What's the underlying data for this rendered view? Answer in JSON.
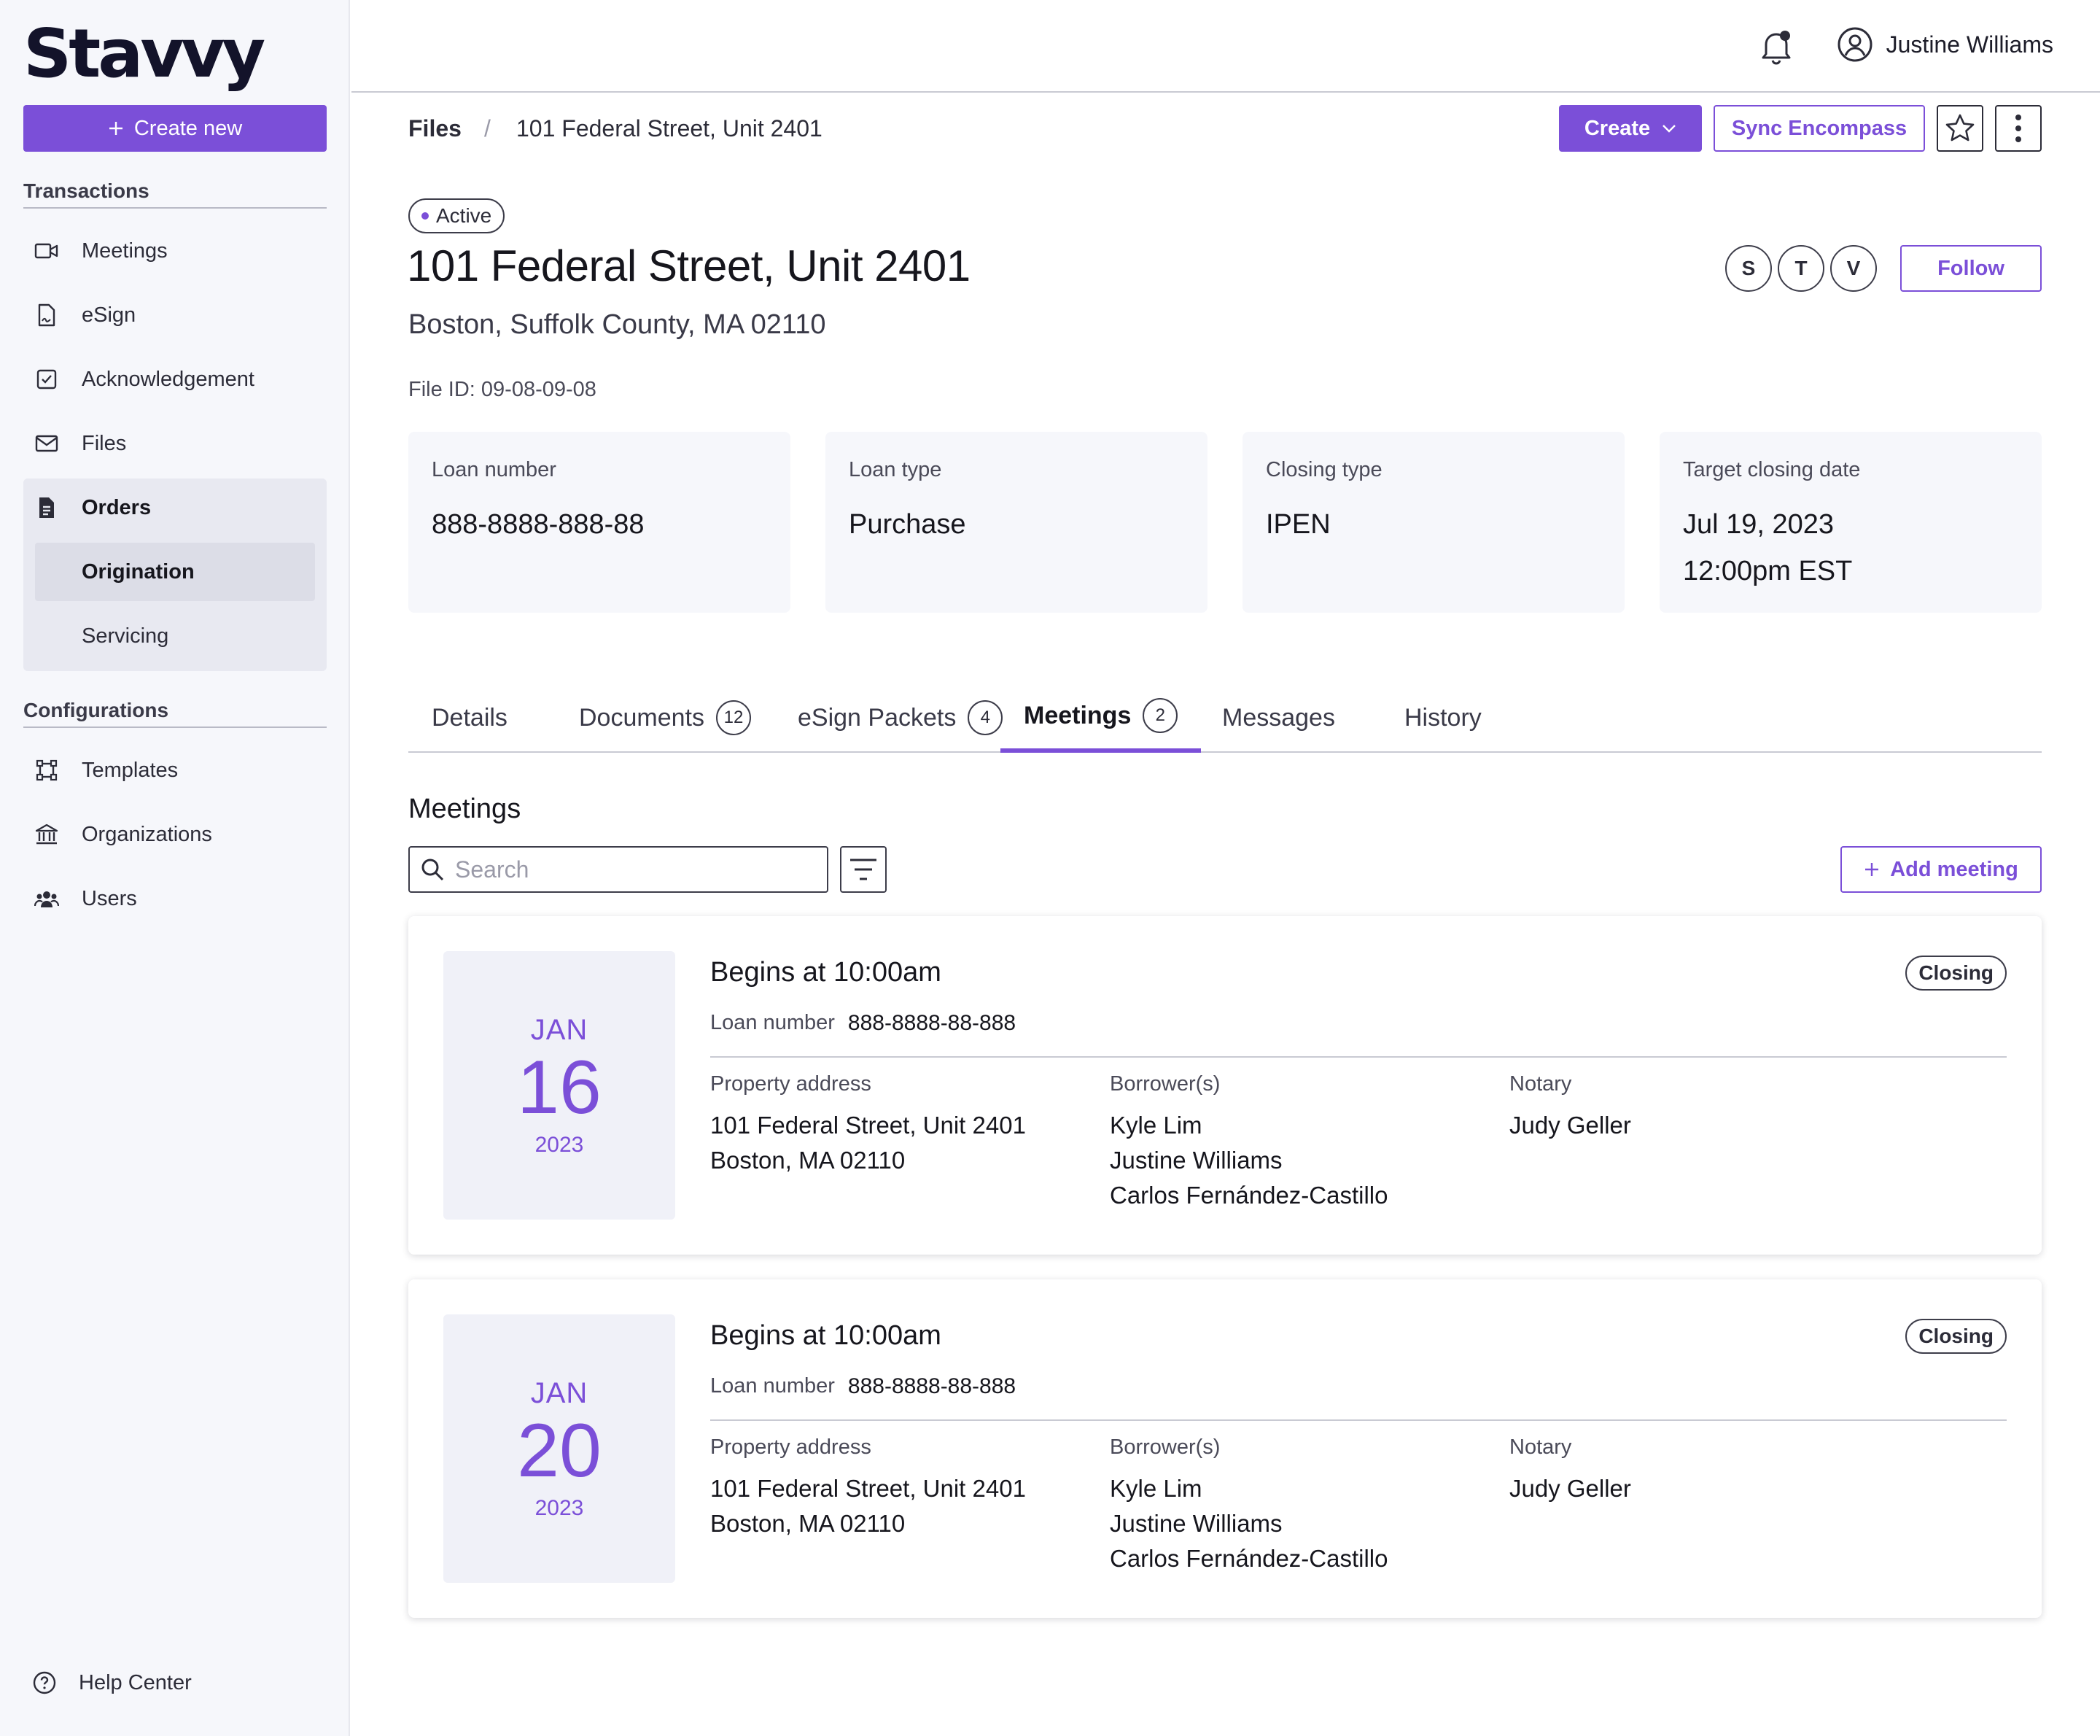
{
  "app": {
    "logo": "Stavvy"
  },
  "sidebar": {
    "create_label": "Create new",
    "transactions_title": "Transactions",
    "items": [
      {
        "label": "Meetings"
      },
      {
        "label": "eSign"
      },
      {
        "label": "Acknowledgement"
      },
      {
        "label": "Files"
      },
      {
        "label": "Orders"
      }
    ],
    "orders_sub": [
      {
        "label": "Origination"
      },
      {
        "label": "Servicing"
      }
    ],
    "configurations_title": "Configurations",
    "config_items": [
      {
        "label": "Templates"
      },
      {
        "label": "Organizations"
      },
      {
        "label": "Users"
      }
    ],
    "help_label": "Help Center"
  },
  "topbar": {
    "user_name": "Justine Williams"
  },
  "breadcrumb": {
    "root": "Files",
    "separator": "/",
    "current": "101 Federal Street, Unit 2401"
  },
  "actions": {
    "create_label": "Create",
    "sync_label": "Sync Encompass"
  },
  "header": {
    "status": "Active",
    "title": "101 Federal Street, Unit 2401",
    "subtitle": "Boston, Suffolk County, MA 02110",
    "file_id": "File ID: 09-08-09-08",
    "avatars": [
      "S",
      "T",
      "V"
    ],
    "follow_label": "Follow"
  },
  "info_cards": [
    {
      "label": "Loan number",
      "value": "888-8888-888-88",
      "value2": ""
    },
    {
      "label": "Loan type",
      "value": "Purchase",
      "value2": ""
    },
    {
      "label": "Closing type",
      "value": "IPEN",
      "value2": ""
    },
    {
      "label": "Target closing date",
      "value": "Jul 19, 2023",
      "value2": "12:00pm EST"
    }
  ],
  "tabs": [
    {
      "label": "Details",
      "count": ""
    },
    {
      "label": "Documents",
      "count": "12"
    },
    {
      "label": "eSign Packets",
      "count": "4"
    },
    {
      "label": "Meetings",
      "count": "2"
    },
    {
      "label": "Messages",
      "count": ""
    },
    {
      "label": "History",
      "count": ""
    }
  ],
  "meetings": {
    "heading": "Meetings",
    "search_placeholder": "Search",
    "add_label": "Add meeting",
    "cards": [
      {
        "month": "JAN",
        "day": "16",
        "year": "2023",
        "title": "Begins at 10:00am",
        "badge": "Closing",
        "loan_label": "Loan number",
        "loan_value": "888-8888-88-888",
        "address_label": "Property address",
        "address": [
          "101 Federal Street, Unit 2401",
          "Boston, MA 02110"
        ],
        "borrowers_label": "Borrower(s)",
        "borrowers": [
          "Kyle Lim",
          "Justine Williams",
          "Carlos Fernández-Castillo"
        ],
        "notary_label": "Notary",
        "notary": "Judy Geller"
      },
      {
        "month": "JAN",
        "day": "20",
        "year": "2023",
        "title": "Begins at 10:00am",
        "badge": "Closing",
        "loan_label": "Loan number",
        "loan_value": "888-8888-88-888",
        "address_label": "Property address",
        "address": [
          "101 Federal Street, Unit 2401",
          "Boston, MA 02110"
        ],
        "borrowers_label": "Borrower(s)",
        "borrowers": [
          "Kyle Lim",
          "Justine Williams",
          "Carlos Fernández-Castillo"
        ],
        "notary_label": "Notary",
        "notary": "Judy Geller"
      }
    ]
  },
  "colors": {
    "accent": "#7b4fd8",
    "sidebar_bg": "#f6f7fb",
    "text": "#16161d"
  }
}
